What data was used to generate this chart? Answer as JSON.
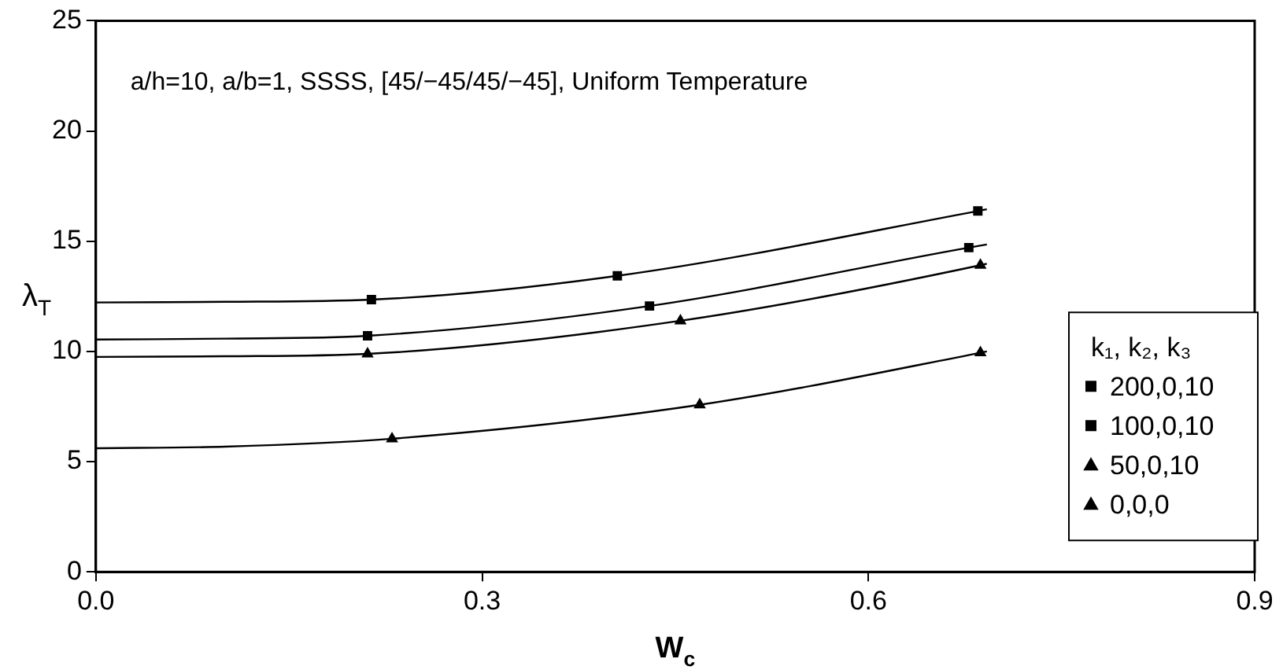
{
  "chart_data": {
    "type": "line",
    "xlabel": "W$_{c}$",
    "ylabel": "λ$_{T}$",
    "legend_title": "k₁, k₂, k₃",
    "legend": "bottom right",
    "grid": false,
    "annotations": [
      "a/h=10, a/b=1, SSSS, [45/−45/45/−45], Uniform Temperature"
    ],
    "xlim": [
      0,
      0.9
    ],
    "xticks": [
      {
        "value": 0,
        "label": "0.0"
      },
      0.3,
      0.6,
      0.9
    ],
    "ylim": [
      0,
      25
    ],
    "yticks": [
      0,
      5,
      10,
      15,
      20,
      25
    ],
    "series": [
      {
        "type": "line",
        "color": "#000000",
        "marker": "none",
        "x": [
          0,
          0.1,
          0.214,
          0.405,
          0.685,
          0.692
        ],
        "values": [
          12.22,
          12.25,
          12.35,
          13.43,
          16.37,
          16.45
        ]
      },
      {
        "type": "line",
        "color": "#000000",
        "marker": "none",
        "x": [
          0,
          0.1,
          0.211,
          0.43,
          0.678,
          0.692
        ],
        "values": [
          10.54,
          10.58,
          10.71,
          12.06,
          14.71,
          14.85
        ]
      },
      {
        "type": "line",
        "color": "#000000",
        "marker": "none",
        "x": [
          0,
          0.1,
          0.211,
          0.454,
          0.687,
          0.692
        ],
        "values": [
          9.75,
          9.78,
          9.89,
          11.39,
          13.91,
          13.98
        ]
      },
      {
        "type": "line",
        "color": "#000000",
        "marker": "none",
        "x": [
          0,
          0.1,
          0.23,
          0.469,
          0.687,
          0.692
        ],
        "values": [
          5.61,
          5.68,
          6.04,
          7.58,
          9.94,
          10.0
        ]
      },
      {
        "type": "scatter",
        "name": "200,0,10",
        "color": "#000000",
        "marker": "square",
        "x": [
          0.214,
          0.405,
          0.685
        ],
        "values": [
          12.35,
          13.43,
          16.37
        ]
      },
      {
        "type": "scatter",
        "name": "100,0,10",
        "color": "#000000",
        "marker": "square",
        "x": [
          0.211,
          0.43,
          0.678
        ],
        "values": [
          10.71,
          12.06,
          14.71
        ]
      },
      {
        "type": "scatter",
        "name": "50,0,10",
        "color": "#000000",
        "marker": "triangle",
        "x": [
          0.211,
          0.454,
          0.687
        ],
        "values": [
          9.89,
          11.39,
          13.91
        ]
      },
      {
        "type": "scatter",
        "name": "0,0,0",
        "color": "#000000",
        "marker": "triangle",
        "x": [
          0.23,
          0.469,
          0.687
        ],
        "values": [
          6.04,
          7.58,
          9.94
        ]
      }
    ]
  }
}
